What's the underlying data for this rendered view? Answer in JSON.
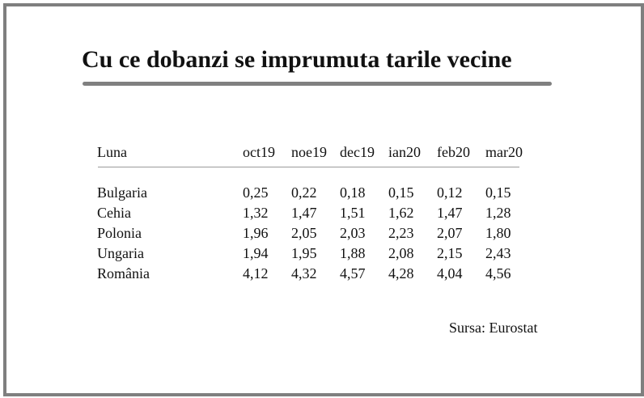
{
  "title": "Cu ce dobanzi se imprumuta tarile vecine",
  "table": {
    "row_header": "Luna",
    "columns": [
      "oct19",
      "noe19",
      "dec19",
      "ian20",
      "feb20",
      "mar20"
    ],
    "rows": [
      {
        "country": "Bulgaria",
        "values": [
          "0,25",
          "0,22",
          "0,18",
          "0,15",
          "0,12",
          "0,15"
        ]
      },
      {
        "country": "Cehia",
        "values": [
          "1,32",
          "1,47",
          "1,51",
          "1,62",
          "1,47",
          "1,28"
        ]
      },
      {
        "country": "Polonia",
        "values": [
          "1,96",
          "2,05",
          "2,03",
          "2,23",
          "2,07",
          "1,80"
        ]
      },
      {
        "country": "Ungaria",
        "values": [
          "1,94",
          "1,95",
          "1,88",
          "2,08",
          "2,15",
          "2,43"
        ]
      },
      {
        "country": "România",
        "values": [
          "4,12",
          "4,32",
          "4,57",
          "4,28",
          "4,04",
          "4,56"
        ]
      }
    ]
  },
  "source": "Sursa: Eurostat",
  "colors": {
    "frame": "#7f7f7f",
    "title_rule": "#808080",
    "text": "#111111"
  },
  "chart_data": {
    "type": "table",
    "title": "Cu ce dobanzi se imprumuta tarile vecine",
    "columns": [
      "Luna",
      "oct19",
      "noe19",
      "dec19",
      "ian20",
      "feb20",
      "mar20"
    ],
    "series": [
      {
        "name": "Bulgaria",
        "values": [
          0.25,
          0.22,
          0.18,
          0.15,
          0.12,
          0.15
        ]
      },
      {
        "name": "Cehia",
        "values": [
          1.32,
          1.47,
          1.51,
          1.62,
          1.47,
          1.28
        ]
      },
      {
        "name": "Polonia",
        "values": [
          1.96,
          2.05,
          2.03,
          2.23,
          2.07,
          1.8
        ]
      },
      {
        "name": "Ungaria",
        "values": [
          1.94,
          1.95,
          1.88,
          2.08,
          2.15,
          2.43
        ]
      },
      {
        "name": "România",
        "values": [
          4.12,
          4.32,
          4.57,
          4.28,
          4.04,
          4.56
        ]
      }
    ],
    "source": "Sursa: Eurostat"
  }
}
